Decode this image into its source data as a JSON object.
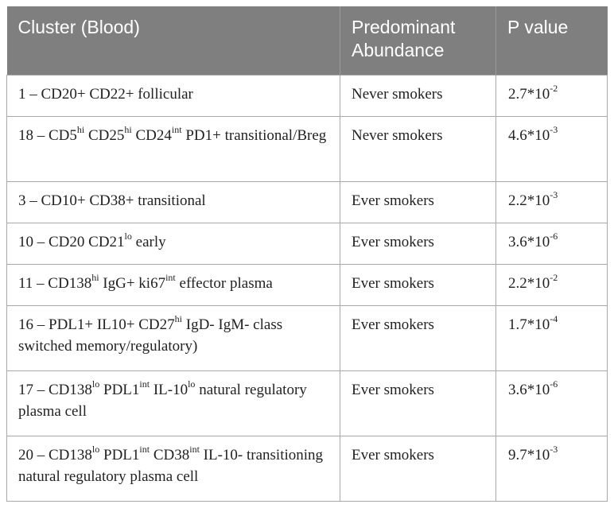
{
  "header": {
    "cluster": "Cluster (Blood)",
    "abundance_line1": "Predominant",
    "abundance_line2": "Abundance",
    "pvalue": "P value"
  },
  "rows": [
    {
      "cluster": [
        {
          "t": "1 – CD20+ CD22+ follicular"
        }
      ],
      "abundance": "Never smokers",
      "p_mantissa": "2.7*10",
      "p_exp": "-2"
    },
    {
      "cluster": [
        {
          "t": "18 – CD5"
        },
        {
          "s": "hi"
        },
        {
          "t": " CD25"
        },
        {
          "s": "hi"
        },
        {
          "t": " CD24"
        },
        {
          "s": "int"
        },
        {
          "t": " PD1+ transitional/Breg"
        }
      ],
      "abundance": "Never smokers",
      "p_mantissa": "4.6*10",
      "p_exp": "-3"
    },
    {
      "cluster": [
        {
          "t": "3 – CD10+ CD38+ transitional"
        }
      ],
      "abundance": "Ever smokers",
      "p_mantissa": "2.2*10",
      "p_exp": "-3"
    },
    {
      "cluster": [
        {
          "t": "10 – CD20 CD21"
        },
        {
          "s": "lo"
        },
        {
          "t": " early"
        }
      ],
      "abundance": "Ever smokers",
      "p_mantissa": "3.6*10",
      "p_exp": "-6"
    },
    {
      "cluster": [
        {
          "t": "11 – CD138"
        },
        {
          "s": "hi"
        },
        {
          "t": " IgG+ ki67"
        },
        {
          "s": "int"
        },
        {
          "t": " effector plasma"
        }
      ],
      "abundance": "Ever smokers",
      "p_mantissa": "2.2*10",
      "p_exp": "-2"
    },
    {
      "cluster": [
        {
          "t": "16 – PDL1+ IL10+ CD27"
        },
        {
          "s": "hi"
        },
        {
          "t": " IgD- IgM- class switched memory/regulatory)"
        }
      ],
      "abundance": "Ever smokers",
      "p_mantissa": "1.7*10",
      "p_exp": "-4"
    },
    {
      "cluster": [
        {
          "t": "17 – CD138"
        },
        {
          "s": "lo"
        },
        {
          "t": " PDL1"
        },
        {
          "s": "int"
        },
        {
          "t": " IL-10"
        },
        {
          "s": "lo"
        },
        {
          "t": " natural regulatory plasma cell"
        }
      ],
      "abundance": "Ever smokers",
      "p_mantissa": "3.6*10",
      "p_exp": "-6"
    },
    {
      "cluster": [
        {
          "t": "20 – CD138"
        },
        {
          "s": "lo"
        },
        {
          "t": " PDL1"
        },
        {
          "s": "int"
        },
        {
          "t": " CD38"
        },
        {
          "s": "int"
        },
        {
          "t": " IL-10- transitioning natural regulatory plasma cell"
        }
      ],
      "abundance": "Ever smokers",
      "p_mantissa": "9.7*10",
      "p_exp": "-3"
    }
  ]
}
